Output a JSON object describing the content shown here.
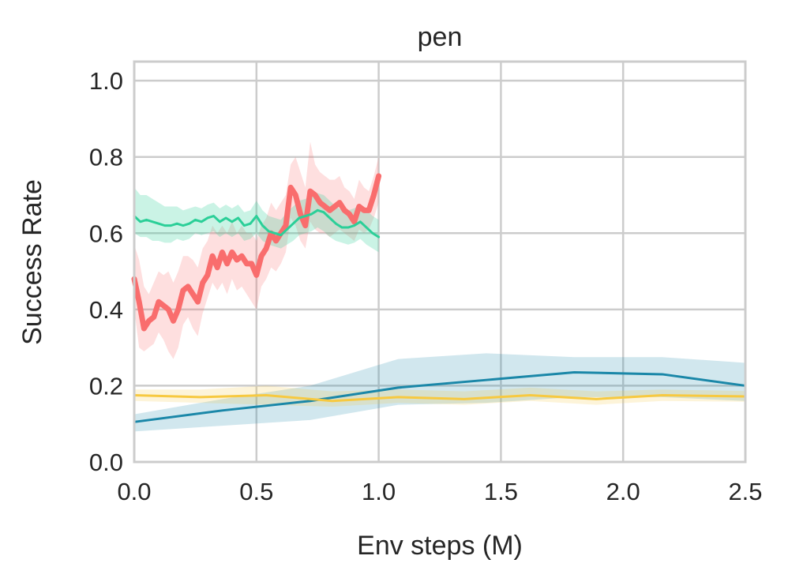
{
  "chart_data": {
    "type": "line",
    "title": "pen",
    "xlabel": "Env steps (M)",
    "ylabel": "Success Rate",
    "xlim": [
      0,
      2.5
    ],
    "ylim": [
      0,
      1.05
    ],
    "xticks": [
      "0.0",
      "0.5",
      "1.0",
      "1.5",
      "2.0",
      "2.5"
    ],
    "yticks": [
      "0.0",
      "0.2",
      "0.4",
      "0.6",
      "0.8",
      "1.0"
    ],
    "grid": true,
    "legend": "none",
    "colors": {
      "red": "#f96d6d",
      "green": "#2bcf98",
      "blue": "#1a87a8",
      "yellow": "#f7c940",
      "grid": "#cccccc",
      "frame": "#cccccc"
    },
    "series": [
      {
        "color": "red",
        "x": [
          0.0,
          0.02,
          0.04,
          0.06,
          0.08,
          0.1,
          0.12,
          0.14,
          0.16,
          0.18,
          0.2,
          0.22,
          0.24,
          0.26,
          0.28,
          0.3,
          0.32,
          0.34,
          0.36,
          0.38,
          0.4,
          0.42,
          0.44,
          0.46,
          0.48,
          0.5,
          0.52,
          0.54,
          0.56,
          0.58,
          0.6,
          0.62,
          0.64,
          0.66,
          0.68,
          0.7,
          0.72,
          0.74,
          0.76,
          0.78,
          0.8,
          0.82,
          0.84,
          0.86,
          0.88,
          0.9,
          0.92,
          0.94,
          0.96,
          0.98,
          1.0
        ],
        "y": [
          0.48,
          0.42,
          0.35,
          0.37,
          0.38,
          0.42,
          0.41,
          0.4,
          0.37,
          0.4,
          0.45,
          0.46,
          0.44,
          0.42,
          0.47,
          0.49,
          0.54,
          0.51,
          0.55,
          0.52,
          0.55,
          0.53,
          0.54,
          0.52,
          0.52,
          0.49,
          0.54,
          0.56,
          0.6,
          0.58,
          0.6,
          0.62,
          0.72,
          0.7,
          0.65,
          0.62,
          0.71,
          0.7,
          0.68,
          0.67,
          0.66,
          0.67,
          0.68,
          0.66,
          0.65,
          0.63,
          0.67,
          0.66,
          0.66,
          0.7,
          0.75
        ],
        "lower": [
          0.4,
          0.3,
          0.29,
          0.3,
          0.31,
          0.34,
          0.32,
          0.29,
          0.27,
          0.3,
          0.36,
          0.38,
          0.35,
          0.33,
          0.39,
          0.43,
          0.47,
          0.45,
          0.47,
          0.44,
          0.48,
          0.45,
          0.46,
          0.44,
          0.42,
          0.4,
          0.46,
          0.48,
          0.51,
          0.5,
          0.52,
          0.55,
          0.64,
          0.62,
          0.58,
          0.56,
          0.63,
          0.61,
          0.6,
          0.6,
          0.59,
          0.6,
          0.61,
          0.6,
          0.59,
          0.58,
          0.61,
          0.6,
          0.61,
          0.64,
          0.68
        ],
        "upper": [
          0.57,
          0.53,
          0.46,
          0.44,
          0.47,
          0.5,
          0.49,
          0.5,
          0.47,
          0.5,
          0.54,
          0.54,
          0.53,
          0.51,
          0.56,
          0.58,
          0.62,
          0.6,
          0.62,
          0.6,
          0.63,
          0.6,
          0.62,
          0.6,
          0.6,
          0.58,
          0.62,
          0.64,
          0.68,
          0.66,
          0.68,
          0.7,
          0.78,
          0.8,
          0.76,
          0.72,
          0.84,
          0.78,
          0.76,
          0.75,
          0.74,
          0.74,
          0.75,
          0.72,
          0.71,
          0.69,
          0.74,
          0.72,
          0.71,
          0.75,
          0.8
        ]
      },
      {
        "color": "green",
        "x": [
          0.0,
          0.025,
          0.05,
          0.075,
          0.1,
          0.125,
          0.15,
          0.175,
          0.2,
          0.225,
          0.25,
          0.275,
          0.3,
          0.325,
          0.35,
          0.375,
          0.4,
          0.425,
          0.45,
          0.475,
          0.5,
          0.525,
          0.55,
          0.575,
          0.6,
          0.625,
          0.65,
          0.675,
          0.7,
          0.725,
          0.75,
          0.775,
          0.8,
          0.825,
          0.85,
          0.875,
          0.9,
          0.925,
          0.95,
          0.975,
          1.0
        ],
        "y": [
          0.645,
          0.63,
          0.635,
          0.63,
          0.625,
          0.62,
          0.62,
          0.625,
          0.62,
          0.625,
          0.635,
          0.63,
          0.64,
          0.645,
          0.63,
          0.64,
          0.63,
          0.64,
          0.62,
          0.625,
          0.645,
          0.62,
          0.605,
          0.6,
          0.595,
          0.61,
          0.625,
          0.64,
          0.645,
          0.65,
          0.66,
          0.655,
          0.64,
          0.625,
          0.615,
          0.615,
          0.62,
          0.63,
          0.615,
          0.6,
          0.59
        ],
        "lower": [
          0.6,
          0.59,
          0.59,
          0.58,
          0.58,
          0.575,
          0.575,
          0.585,
          0.58,
          0.585,
          0.6,
          0.595,
          0.6,
          0.605,
          0.59,
          0.6,
          0.59,
          0.6,
          0.58,
          0.585,
          0.6,
          0.58,
          0.57,
          0.565,
          0.56,
          0.57,
          0.58,
          0.595,
          0.6,
          0.605,
          0.615,
          0.605,
          0.59,
          0.58,
          0.575,
          0.57,
          0.575,
          0.585,
          0.57,
          0.56,
          0.55
        ],
        "upper": [
          0.72,
          0.7,
          0.7,
          0.69,
          0.68,
          0.67,
          0.67,
          0.67,
          0.66,
          0.665,
          0.67,
          0.665,
          0.675,
          0.68,
          0.665,
          0.675,
          0.665,
          0.675,
          0.655,
          0.66,
          0.685,
          0.66,
          0.645,
          0.64,
          0.635,
          0.655,
          0.67,
          0.685,
          0.69,
          0.695,
          0.705,
          0.7,
          0.685,
          0.67,
          0.66,
          0.66,
          0.665,
          0.675,
          0.66,
          0.645,
          0.635
        ]
      },
      {
        "color": "blue",
        "x": [
          0.0,
          0.36,
          0.72,
          1.08,
          1.44,
          1.8,
          2.16,
          2.5
        ],
        "y": [
          0.105,
          0.135,
          0.16,
          0.195,
          0.215,
          0.235,
          0.23,
          0.2
        ],
        "lower": [
          0.08,
          0.095,
          0.11,
          0.15,
          0.155,
          0.17,
          0.17,
          0.16
        ],
        "upper": [
          0.125,
          0.165,
          0.2,
          0.27,
          0.285,
          0.275,
          0.275,
          0.26
        ]
      },
      {
        "color": "yellow",
        "x": [
          0.0,
          0.27,
          0.54,
          0.81,
          1.08,
          1.35,
          1.62,
          1.89,
          2.16,
          2.5
        ],
        "y": [
          0.175,
          0.17,
          0.175,
          0.16,
          0.17,
          0.165,
          0.175,
          0.165,
          0.175,
          0.172
        ],
        "lower": [
          0.16,
          0.155,
          0.15,
          0.145,
          0.155,
          0.15,
          0.16,
          0.15,
          0.16,
          0.158
        ],
        "upper": [
          0.19,
          0.19,
          0.2,
          0.185,
          0.19,
          0.185,
          0.195,
          0.185,
          0.19,
          0.186
        ]
      }
    ]
  }
}
